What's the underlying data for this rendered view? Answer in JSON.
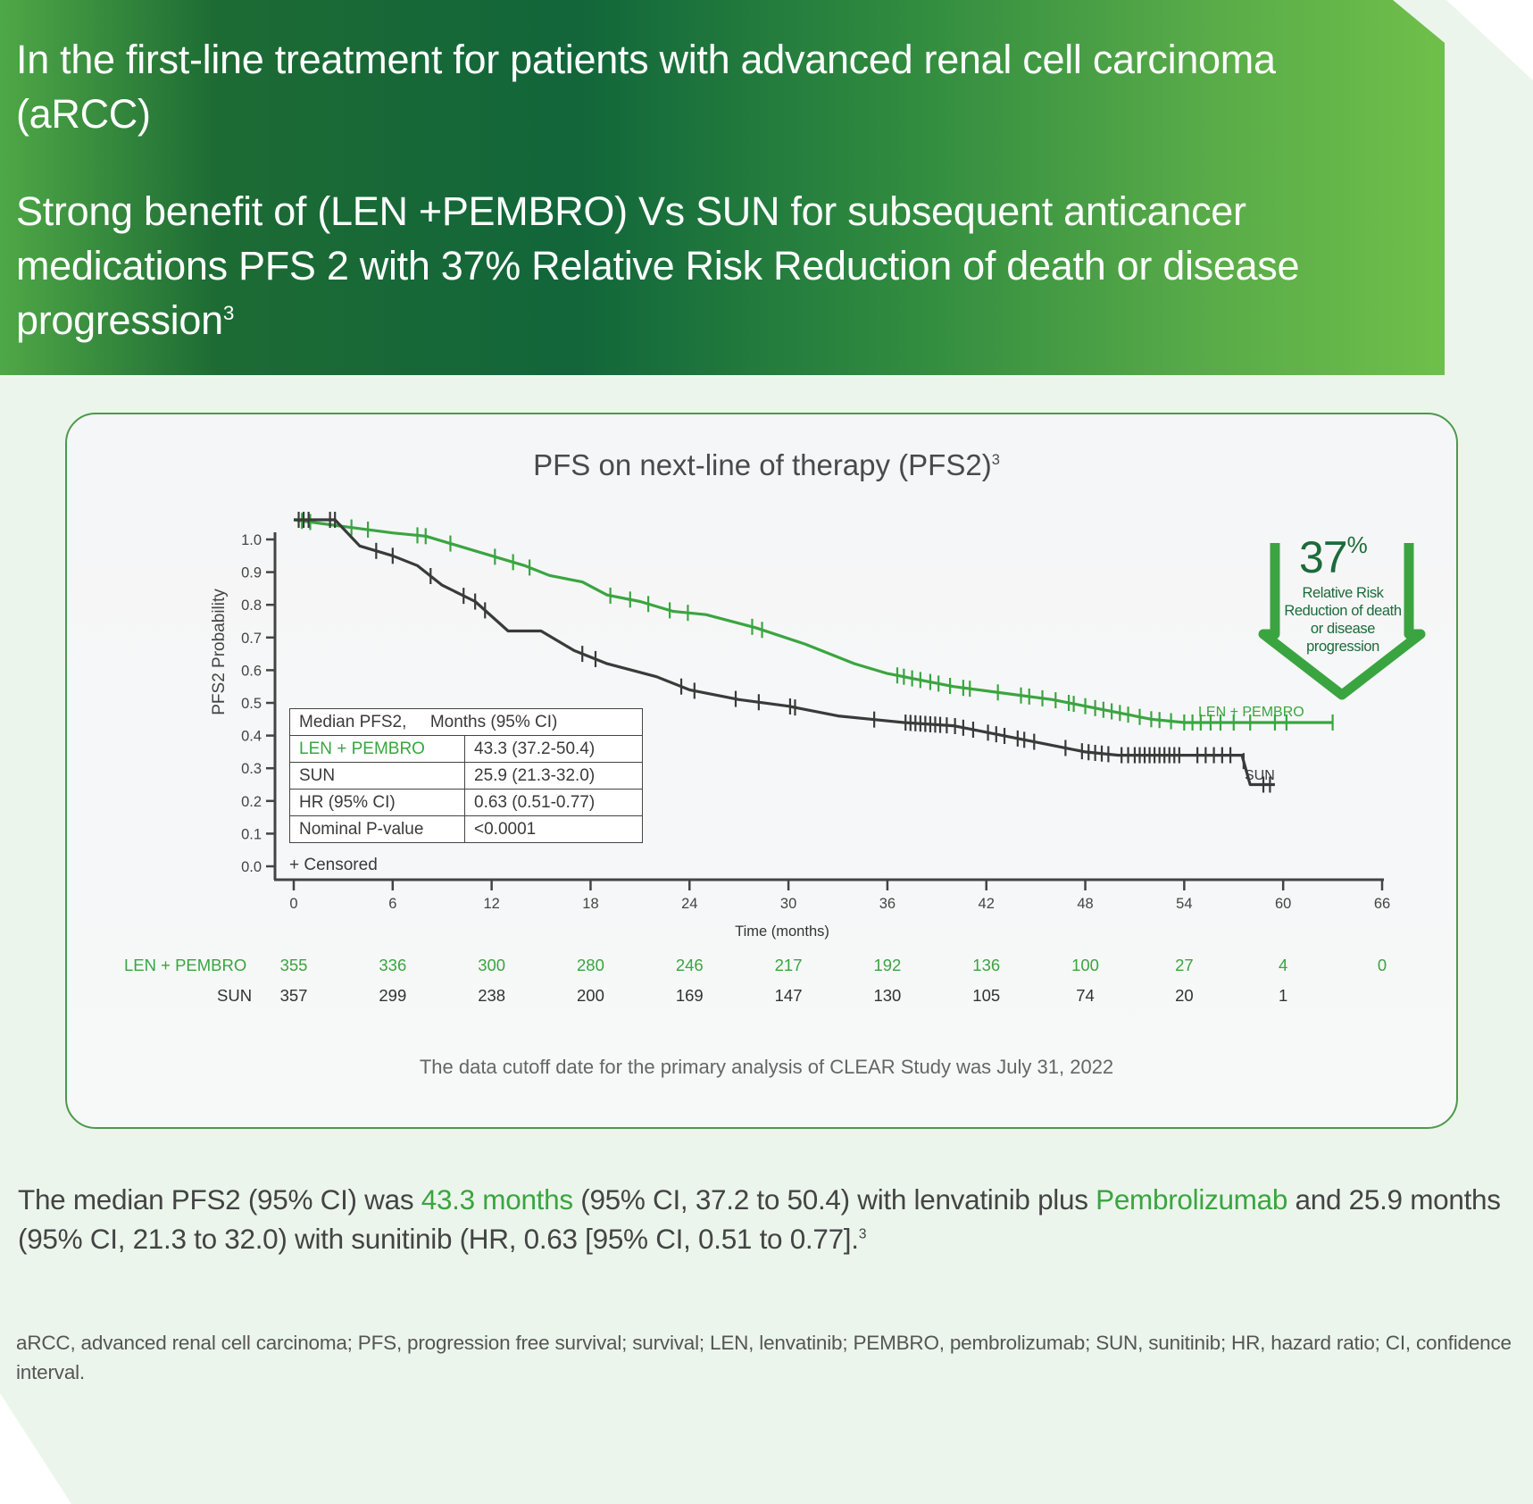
{
  "header": {
    "line1": "In the first-line treatment for patients with advanced renal cell carcinoma (aRCC)",
    "line2_main": "Strong benefit of (LEN +PEMBRO) Vs SUN for subsequent anticancer medications PFS 2 with 37% Relative Risk Reduction of death or disease progression",
    "line2_sup": "3"
  },
  "callout": {
    "percent": "37",
    "percent_sign": "%",
    "text": "Relative  Risk Reduction of death or disease progression"
  },
  "stats_table": {
    "header_left": "Median PFS2,",
    "header_right": "Months (95% CI)",
    "rows": [
      {
        "label": "LEN + PEMBRO",
        "value": "43.3 (37.2-50.4)"
      },
      {
        "label": "SUN",
        "value": "25.9 (21.3-32.0)"
      },
      {
        "label": "HR  (95% CI)",
        "value": "0.63 (0.51-0.77)"
      },
      {
        "label": "Nominal P-value",
        "value": "<0.0001"
      }
    ],
    "censored_note": "+ Censored"
  },
  "risk_table": {
    "rows": [
      {
        "label": "LEN + PEMBRO",
        "values": [
          "355",
          "336",
          "300",
          "280",
          "246",
          "217",
          "192",
          "136",
          "100",
          "27",
          "4",
          "0"
        ]
      },
      {
        "label": "SUN",
        "values": [
          "357",
          "299",
          "238",
          "200",
          "169",
          "147",
          "130",
          "105",
          "74",
          "20",
          "1",
          ""
        ]
      }
    ]
  },
  "cutoff_note": "The data cutoff date for the primary analysis of CLEAR Study was July 31, 2022",
  "summary": {
    "p1": "The median PFS2 (95% CI) was ",
    "g1": "43.3 months",
    "p2": " (95% CI, 37.2 to 50.4) with lenvatinib plus ",
    "g2": "Pembrolizumab",
    "p3": " and 25.9 months (95% CI, 21.3 to 32.0) with sunitinib (HR, 0.63 [95% CI, 0.51 to 0.77].",
    "sup": "3"
  },
  "footnote": "aRCC, advanced renal cell carcinoma; PFS, progression free survival; survival; LEN, lenvatinib; PEMBRO, pembrolizumab; SUN, sunitinib; HR, hazard ratio; CI, confidence interval.",
  "colors": {
    "len_pembro": "#3aa540",
    "sun": "#3a3a3a",
    "callout": "#3aa540",
    "callout_text": "#1c6b3a"
  },
  "chart_data": {
    "type": "line",
    "title": "PFS on next-line of therapy (PFS2)",
    "title_sup": "3",
    "xlabel": "Time (months)",
    "ylabel": "PFS2 Probability",
    "xlim": [
      0,
      66
    ],
    "ylim": [
      0,
      1.0
    ],
    "x_ticks": [
      0,
      6,
      12,
      18,
      24,
      30,
      36,
      42,
      48,
      54,
      60,
      66
    ],
    "y_ticks": [
      "0.0",
      "0.1",
      "0.2",
      "0.3",
      "0.4",
      "0.5",
      "0.6",
      "0.7",
      "0.8",
      "0.9",
      "1.0"
    ],
    "series": [
      {
        "name": "LEN + PEMBRO",
        "end_label": "LEN + PEMBRO",
        "x": [
          0,
          3,
          6,
          8,
          10,
          12,
          14,
          15.5,
          17.5,
          19,
          21,
          23,
          25,
          28,
          31,
          34,
          36,
          38,
          40,
          43,
          46,
          49,
          52,
          54,
          63
        ],
        "y": [
          1.06,
          1.04,
          1.02,
          1.01,
          0.98,
          0.95,
          0.92,
          0.89,
          0.87,
          0.83,
          0.81,
          0.78,
          0.77,
          0.73,
          0.68,
          0.62,
          0.59,
          0.57,
          0.55,
          0.53,
          0.51,
          0.48,
          0.45,
          0.44,
          0.44
        ],
        "censor_x": [
          0.5,
          1,
          3.5,
          4.5,
          7.5,
          8,
          9.5,
          12.2,
          13.3,
          14.3,
          19.2,
          20.4,
          21.5,
          22.8,
          23.9,
          27.8,
          28.4,
          36.6,
          37,
          37.5,
          38,
          38.6,
          39.1,
          39.8,
          40.6,
          41,
          42.7,
          44.1,
          44.6,
          45.4,
          46.2,
          47,
          47.3,
          48,
          48.6,
          49.1,
          49.6,
          50.1,
          50.6,
          51.3,
          52,
          52.5,
          53.2,
          54,
          54.5,
          55,
          55.6,
          56.2,
          57,
          58,
          59.5,
          60.2,
          63
        ]
      },
      {
        "name": "SUN",
        "end_label": "SUN",
        "x": [
          0,
          2.5,
          4,
          6,
          7.5,
          9,
          11,
          13,
          15,
          17,
          19,
          22,
          24,
          27,
          30,
          33,
          35,
          37,
          40,
          43,
          46,
          48,
          50,
          57.5,
          58,
          59.5
        ],
        "y": [
          1.06,
          1.06,
          0.98,
          0.95,
          0.92,
          0.86,
          0.81,
          0.72,
          0.72,
          0.66,
          0.62,
          0.58,
          0.54,
          0.51,
          0.49,
          0.46,
          0.45,
          0.44,
          0.43,
          0.4,
          0.37,
          0.35,
          0.34,
          0.34,
          0.25,
          0.25
        ],
        "censor_x": [
          0.3,
          0.6,
          0.9,
          2.2,
          2.5,
          5,
          6,
          8.3,
          10.3,
          11,
          11.6,
          17.5,
          18.3,
          23.5,
          24.3,
          26.8,
          28.2,
          30.1,
          30.4,
          35.2,
          37.1,
          37.4,
          37.7,
          38,
          38.3,
          38.6,
          38.9,
          39.2,
          39.6,
          40.1,
          40.6,
          41.2,
          42.1,
          42.6,
          43.1,
          43.9,
          44.3,
          44.9,
          46.8,
          47.8,
          48.2,
          48.6,
          49,
          49.4,
          50.2,
          50.6,
          51,
          51.3,
          51.6,
          51.9,
          52.2,
          52.5,
          52.8,
          53.1,
          53.4,
          53.7,
          54.8,
          55.3,
          55.8,
          56.3,
          56.8,
          57.6,
          58.8,
          59.2
        ]
      }
    ],
    "annotation": "37% Relative Risk Reduction of death or disease progression",
    "legend": "inline-right"
  }
}
